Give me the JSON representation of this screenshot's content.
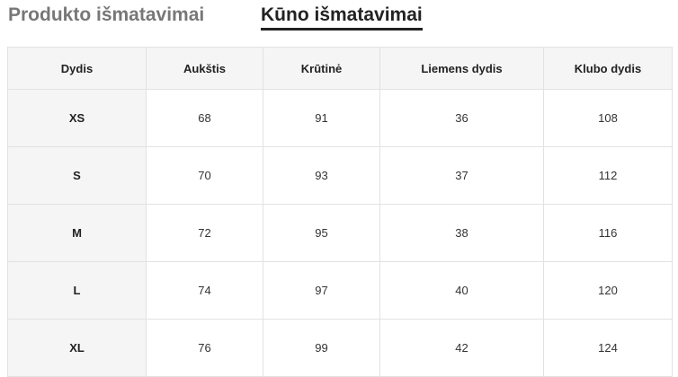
{
  "tabs": [
    {
      "label": "Produkto išmatavimai",
      "active": false
    },
    {
      "label": "Kūno išmatavimai",
      "active": true
    }
  ],
  "table": {
    "headers": [
      "Dydis",
      "Aukštis",
      "Krūtinė",
      "Liemens dydis",
      "Klubo dydis"
    ],
    "rows": [
      [
        "XS",
        "68",
        "91",
        "36",
        "108"
      ],
      [
        "S",
        "70",
        "93",
        "37",
        "112"
      ],
      [
        "M",
        "72",
        "95",
        "38",
        "116"
      ],
      [
        "L",
        "74",
        "97",
        "40",
        "120"
      ],
      [
        "XL",
        "76",
        "99",
        "42",
        "124"
      ]
    ]
  }
}
